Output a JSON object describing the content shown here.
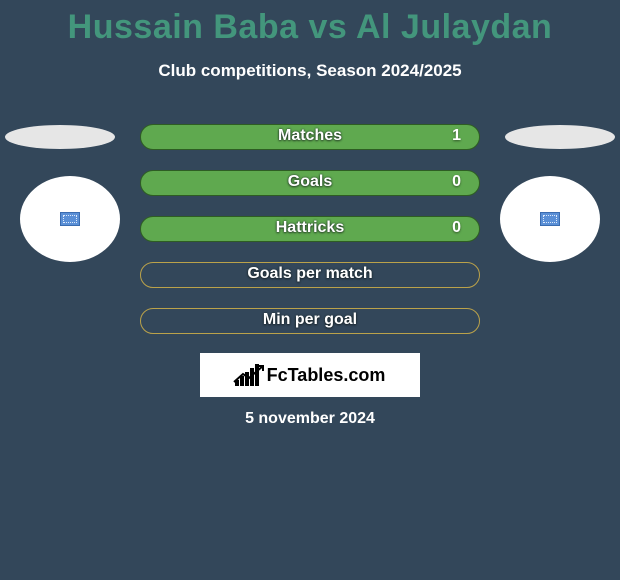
{
  "title": "Hussain Baba vs Al Julaydan",
  "subtitle": "Club competitions, Season 2024/2025",
  "title_color": "#43967c",
  "background": "#33475a",
  "stats": {
    "rows": [
      {
        "label": "Matches",
        "filled": true,
        "value": "1"
      },
      {
        "label": "Goals",
        "filled": true,
        "value": "0"
      },
      {
        "label": "Hattricks",
        "filled": true,
        "value": "0"
      },
      {
        "label": "Goals per match",
        "filled": false,
        "value": ""
      },
      {
        "label": "Min per goal",
        "filled": false,
        "value": ""
      }
    ],
    "filled_color": "#5fa94f",
    "empty_border": "#bba24a",
    "label_fontsize": 16
  },
  "brand": "FcTables.com",
  "date": "5 november 2024"
}
